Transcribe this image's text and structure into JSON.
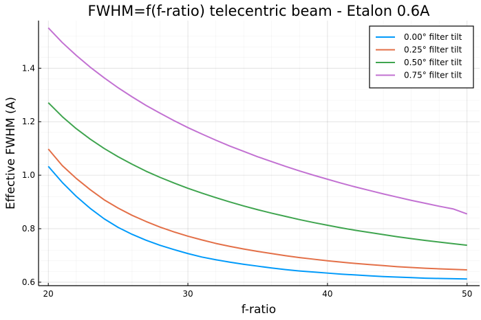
{
  "chart_data": {
    "type": "line",
    "title": "FWHM=f(f-ratio) telecentric beam - Etalon 0.6A",
    "xlabel": "f-ratio",
    "ylabel": "Effective FWHM (A)",
    "xlim": [
      19.3,
      50.9
    ],
    "ylim": [
      0.587,
      1.578
    ],
    "xticks": [
      20,
      30,
      40,
      50
    ],
    "yticks": [
      0.6,
      0.8,
      1.0,
      1.2,
      1.4
    ],
    "xtick_labels": [
      "20",
      "30",
      "40",
      "50"
    ],
    "ytick_labels": [
      "0.6",
      "0.8",
      "1.0",
      "1.2",
      "1.4"
    ],
    "x": [
      20,
      21,
      22,
      23,
      24,
      25,
      26,
      27,
      28,
      29,
      30,
      31,
      32,
      33,
      34,
      35,
      36,
      37,
      38,
      39,
      40,
      41,
      42,
      43,
      44,
      45,
      46,
      47,
      48,
      49,
      50
    ],
    "series": [
      {
        "name": "0.00° filter tilt",
        "color": "#009AFA",
        "values": [
          1.033,
          0.973,
          0.921,
          0.876,
          0.837,
          0.805,
          0.779,
          0.757,
          0.738,
          0.722,
          0.707,
          0.694,
          0.684,
          0.675,
          0.667,
          0.66,
          0.653,
          0.647,
          0.642,
          0.638,
          0.634,
          0.63,
          0.627,
          0.624,
          0.621,
          0.619,
          0.617,
          0.615,
          0.614,
          0.613,
          0.612
        ]
      },
      {
        "name": "0.25° filter tilt",
        "color": "#E36F47",
        "values": [
          1.098,
          1.036,
          0.988,
          0.946,
          0.908,
          0.877,
          0.85,
          0.827,
          0.806,
          0.788,
          0.772,
          0.758,
          0.745,
          0.734,
          0.724,
          0.715,
          0.707,
          0.699,
          0.692,
          0.686,
          0.68,
          0.675,
          0.67,
          0.666,
          0.662,
          0.658,
          0.655,
          0.652,
          0.65,
          0.648,
          0.646
        ]
      },
      {
        "name": "0.50° filter tilt",
        "color": "#3EA44E",
        "values": [
          1.271,
          1.219,
          1.174,
          1.135,
          1.1,
          1.069,
          1.041,
          1.015,
          0.992,
          0.971,
          0.951,
          0.933,
          0.916,
          0.9,
          0.885,
          0.871,
          0.858,
          0.846,
          0.834,
          0.823,
          0.813,
          0.803,
          0.794,
          0.786,
          0.778,
          0.77,
          0.763,
          0.756,
          0.75,
          0.744,
          0.738
        ]
      },
      {
        "name": "0.75° filter tilt",
        "color": "#C271D2",
        "values": [
          1.551,
          1.496,
          1.448,
          1.404,
          1.364,
          1.327,
          1.293,
          1.261,
          1.232,
          1.204,
          1.178,
          1.154,
          1.131,
          1.109,
          1.089,
          1.069,
          1.051,
          1.033,
          1.016,
          1.0,
          0.985,
          0.97,
          0.956,
          0.943,
          0.93,
          0.918,
          0.906,
          0.895,
          0.884,
          0.874,
          0.855
        ]
      }
    ],
    "grid": true,
    "legend_position": "top-right"
  }
}
